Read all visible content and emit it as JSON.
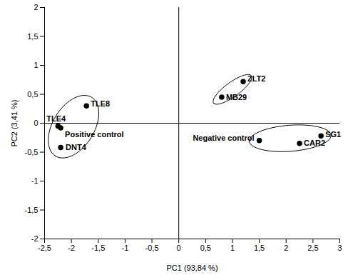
{
  "chart_data": {
    "type": "scatter",
    "x_label": "PC1 (93,84 %)",
    "y_label": "PC2 (3,41 %)",
    "labels": [
      "TLE8",
      "TLE4",
      "Positive control",
      "DNT4",
      "ZLT2",
      "MB29",
      "SG1",
      "CAR2",
      "Negative control"
    ],
    "x": [
      -1.72,
      -2.25,
      -2.2,
      -2.2,
      1.2,
      0.8,
      2.65,
      2.25,
      1.5
    ],
    "values": [
      0.3,
      -0.05,
      -0.08,
      -0.42,
      0.72,
      0.45,
      -0.22,
      -0.35,
      -0.3
    ],
    "clusters": [
      [
        "TLE8",
        "TLE4",
        "Positive control",
        "DNT4"
      ],
      [
        "ZLT2",
        "MB29"
      ],
      [
        "SG1",
        "CAR2",
        "Negative control"
      ]
    ],
    "color": "#000000",
    "marker": "circle",
    "xlim": [
      -2.5,
      3
    ],
    "xticks": [
      {
        "value": -2.5,
        "label": "-2,5"
      },
      -2,
      {
        "value": -1.5,
        "label": "-1,5"
      },
      -1,
      {
        "value": -0.5,
        "label": "-0,5"
      },
      0,
      {
        "value": 0.5,
        "label": "0,5"
      },
      1,
      {
        "value": 1.5,
        "label": "1,5"
      },
      2,
      {
        "value": 2.5,
        "label": "2,5"
      },
      3
    ],
    "ylim": [
      -2,
      2
    ],
    "yticks": [
      -2,
      {
        "value": -1.5,
        "label": "-1,5"
      },
      -1,
      {
        "value": -0.5,
        "label": "-0,5"
      },
      0,
      {
        "value": 0.5,
        "label": "0,5"
      },
      1,
      {
        "value": 1.5,
        "label": "1,5"
      },
      2
    ],
    "grid": false
  }
}
